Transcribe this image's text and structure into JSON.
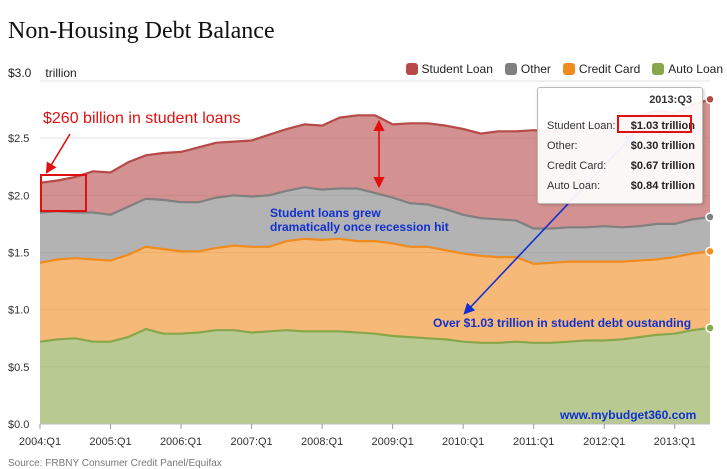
{
  "header": {
    "title": "Non-Housing Debt Balance",
    "unit_value": "$3.0",
    "unit_label": "trillion"
  },
  "source": "Source: FRBNY Consumer Credit Panel/Equifax",
  "colors": {
    "student": "#b54a48",
    "other": "#808080",
    "credit": "#f08b1e",
    "auto": "#88a74a"
  },
  "legend": [
    {
      "name": "Student Loan",
      "color": "#b54a48"
    },
    {
      "name": "Other",
      "color": "#808080"
    },
    {
      "name": "Credit Card",
      "color": "#f08b1e"
    },
    {
      "name": "Auto Loan",
      "color": "#88a74a"
    }
  ],
  "tooltip": {
    "date": "2013:Q3",
    "rows": [
      {
        "label": "Student Loan:",
        "value": "$1.03 trillion"
      },
      {
        "label": "Other:",
        "value": "$0.30 trillion"
      },
      {
        "label": "Credit Card:",
        "value": "$0.67 trillion"
      },
      {
        "label": "Auto Loan:",
        "value": "$0.84 trillion"
      }
    ]
  },
  "annotations": {
    "student_260": "$260 billion in student loans",
    "recession_line1": "Student loans grew",
    "recession_line2": "dramatically once recession hit",
    "over_103": "Over $1.03 trillion in student debt oustanding",
    "website": "www.mybudget360.com"
  },
  "chart_data": {
    "type": "area",
    "stacked": true,
    "title": "Non-Housing Debt Balance",
    "ylabel": "trillion",
    "ylim": [
      0,
      3.0
    ],
    "yticks": [
      "$0.0",
      "$0.5",
      "$1.0",
      "$1.5",
      "$2.0",
      "$2.5",
      "$3.0"
    ],
    "ytick_values": [
      0,
      0.5,
      1.0,
      1.5,
      2.0,
      2.5,
      3.0
    ],
    "xticks": [
      "2004:Q1",
      "2005:Q1",
      "2006:Q1",
      "2007:Q1",
      "2008:Q1",
      "2009:Q1",
      "2010:Q1",
      "2011:Q1",
      "2012:Q1",
      "2013:Q1"
    ],
    "x": [
      "2004:Q1",
      "2004:Q2",
      "2004:Q3",
      "2004:Q4",
      "2005:Q1",
      "2005:Q2",
      "2005:Q3",
      "2005:Q4",
      "2006:Q1",
      "2006:Q2",
      "2006:Q3",
      "2006:Q4",
      "2007:Q1",
      "2007:Q2",
      "2007:Q3",
      "2007:Q4",
      "2008:Q1",
      "2008:Q2",
      "2008:Q3",
      "2008:Q4",
      "2009:Q1",
      "2009:Q2",
      "2009:Q3",
      "2009:Q4",
      "2010:Q1",
      "2010:Q2",
      "2010:Q3",
      "2010:Q4",
      "2011:Q1",
      "2011:Q2",
      "2011:Q3",
      "2011:Q4",
      "2012:Q1",
      "2012:Q2",
      "2012:Q3",
      "2012:Q4",
      "2013:Q1",
      "2013:Q2",
      "2013:Q3"
    ],
    "series": [
      {
        "name": "Auto Loan",
        "values": [
          0.72,
          0.74,
          0.75,
          0.72,
          0.72,
          0.76,
          0.83,
          0.79,
          0.79,
          0.8,
          0.82,
          0.82,
          0.8,
          0.81,
          0.82,
          0.81,
          0.81,
          0.81,
          0.8,
          0.79,
          0.77,
          0.76,
          0.75,
          0.74,
          0.72,
          0.71,
          0.71,
          0.72,
          0.71,
          0.71,
          0.72,
          0.73,
          0.73,
          0.74,
          0.76,
          0.78,
          0.79,
          0.82,
          0.84
        ]
      },
      {
        "name": "Credit Card",
        "values": [
          0.69,
          0.7,
          0.7,
          0.72,
          0.71,
          0.72,
          0.72,
          0.74,
          0.72,
          0.71,
          0.72,
          0.74,
          0.75,
          0.74,
          0.78,
          0.81,
          0.8,
          0.81,
          0.8,
          0.81,
          0.81,
          0.79,
          0.8,
          0.78,
          0.77,
          0.76,
          0.75,
          0.74,
          0.69,
          0.7,
          0.7,
          0.69,
          0.69,
          0.68,
          0.67,
          0.66,
          0.67,
          0.67,
          0.67
        ]
      },
      {
        "name": "Other",
        "values": [
          0.44,
          0.42,
          0.4,
          0.41,
          0.4,
          0.42,
          0.42,
          0.43,
          0.43,
          0.43,
          0.44,
          0.44,
          0.44,
          0.45,
          0.44,
          0.45,
          0.44,
          0.44,
          0.46,
          0.42,
          0.4,
          0.38,
          0.37,
          0.36,
          0.34,
          0.33,
          0.33,
          0.32,
          0.31,
          0.3,
          0.3,
          0.3,
          0.31,
          0.3,
          0.3,
          0.31,
          0.29,
          0.3,
          0.3
        ]
      },
      {
        "name": "Student Loan",
        "values": [
          0.26,
          0.27,
          0.31,
          0.36,
          0.37,
          0.39,
          0.38,
          0.41,
          0.44,
          0.48,
          0.48,
          0.47,
          0.49,
          0.53,
          0.54,
          0.55,
          0.56,
          0.62,
          0.64,
          0.68,
          0.64,
          0.7,
          0.71,
          0.73,
          0.75,
          0.74,
          0.77,
          0.78,
          0.86,
          0.85,
          0.86,
          0.88,
          0.9,
          0.95,
          0.97,
          0.99,
          0.97,
          1.0,
          1.03
        ]
      }
    ]
  }
}
